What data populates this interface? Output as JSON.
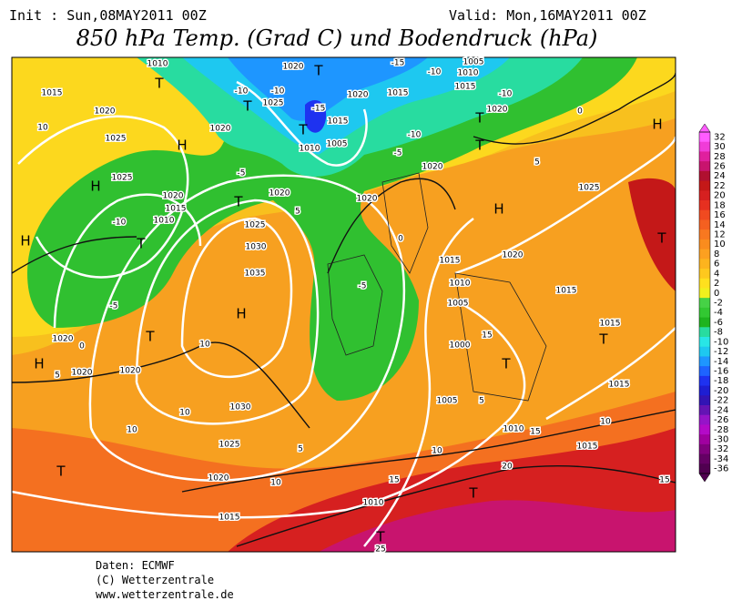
{
  "header": {
    "init": "Init : Sun,08MAY2011 00Z",
    "valid": "Valid: Mon,16MAY2011 00Z",
    "title": "850 hPa Temp. (Grad C) und Bodendruck (hPa)"
  },
  "colorbar": {
    "ticks": [
      32,
      30,
      28,
      26,
      24,
      22,
      20,
      18,
      16,
      14,
      12,
      10,
      8,
      6,
      4,
      2,
      0,
      -2,
      -4,
      -6,
      -8,
      -10,
      -12,
      -14,
      -16,
      -18,
      -20,
      -22,
      -24,
      -26,
      -28,
      -30,
      -32,
      -34,
      -36
    ],
    "colors": [
      "#ff5cff",
      "#f03cd8",
      "#e0209e",
      "#c8146e",
      "#b01030",
      "#c41818",
      "#d62020",
      "#e63020",
      "#f04a20",
      "#f46020",
      "#f87820",
      "#fa8c1e",
      "#fca020",
      "#fdb41e",
      "#fec81e",
      "#ffe01e",
      "#f0f01e",
      "#46d246",
      "#32c832",
      "#1eb41e",
      "#28dca0",
      "#28e6e6",
      "#1ec8f0",
      "#1e96ff",
      "#1e64ff",
      "#1e32f0",
      "#1e1ed2",
      "#3214b4",
      "#6414b4",
      "#9614c8",
      "#b40ac8",
      "#a000a0",
      "#80007e",
      "#640064",
      "#500050"
    ]
  },
  "map_labels": [
    "H",
    "H",
    "H",
    "H",
    "H",
    "H",
    "H",
    "T",
    "T",
    "T",
    "T",
    "T",
    "T",
    "T",
    "T",
    "T",
    "T",
    "T",
    "T",
    "T",
    "T",
    "T",
    "1010",
    "1015",
    "1020",
    "1025",
    "1025",
    "1020",
    "1015",
    "1010",
    "1020",
    "1025",
    "1020",
    "1020",
    "1015",
    "1005",
    "1010",
    "1020",
    "1020",
    "1025",
    "1030",
    "1035",
    "1030",
    "1025",
    "1020",
    "1015",
    "1010",
    "1020",
    "1020",
    "1020",
    "1020",
    "1015",
    "1010",
    "1005",
    "1000",
    "1005",
    "1010",
    "1015",
    "1015",
    "1015",
    "1015",
    "1020",
    "1025",
    "1010",
    "1015",
    "1005",
    "1020",
    "1015",
    "-10",
    "-10",
    "-15",
    "-5",
    "-10",
    "-5",
    "0",
    "5",
    "10",
    "-10",
    "-5",
    "-10",
    "-15",
    "-10",
    "0",
    "5",
    "10",
    "10",
    "10",
    "5",
    "10",
    "10",
    "15",
    "20",
    "15",
    "10",
    "15",
    "25",
    "-5",
    "0",
    "5",
    "5",
    "15"
  ],
  "footer": [
    "Daten: ECMWF",
    "(C) Wetterzentrale",
    "www.wetterzentrale.de"
  ]
}
